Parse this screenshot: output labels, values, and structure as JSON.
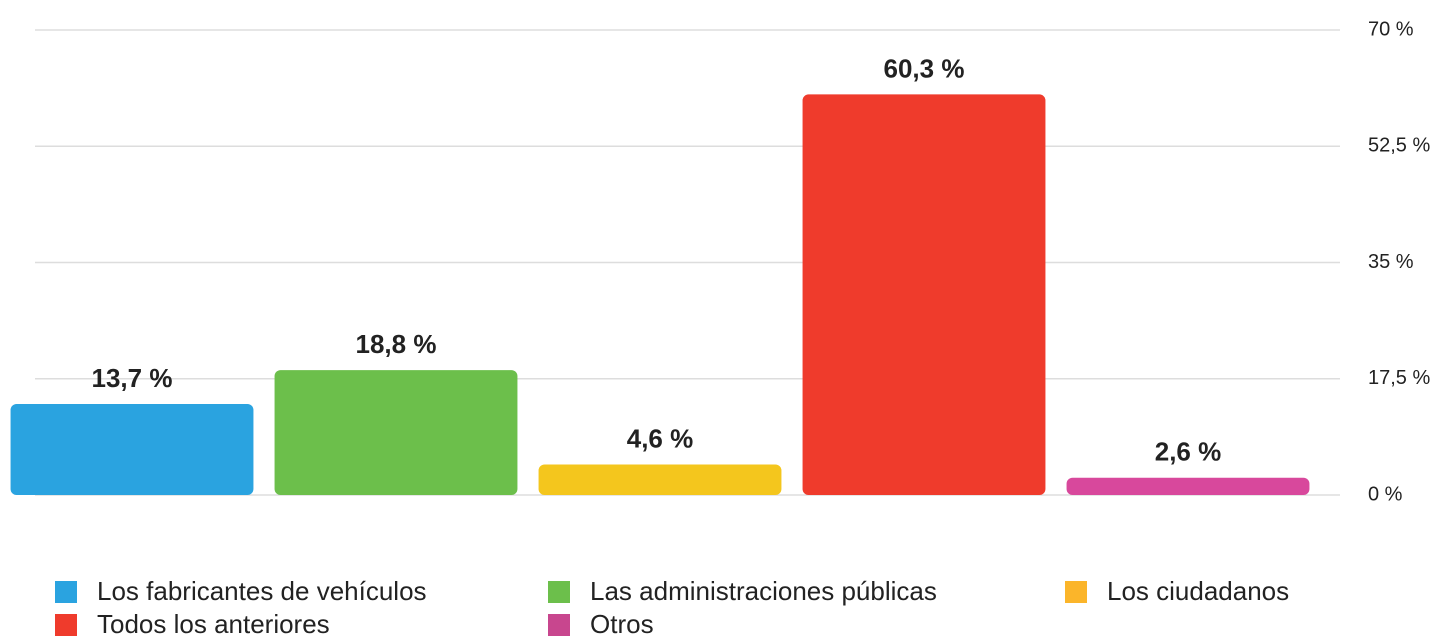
{
  "chart_data": {
    "type": "bar",
    "categories": [
      "Los fabricantes de vehículos",
      "Las administraciones públicas",
      "Los ciudadanos",
      "Todos los anteriores",
      "Otros"
    ],
    "values": [
      13.7,
      18.8,
      4.6,
      60.3,
      2.6
    ],
    "value_labels": [
      "13,7 %",
      "18,8 %",
      "4,6 %",
      "60,3 %",
      "2,6 %"
    ],
    "colors": [
      "#2aa3e0",
      "#6cbf4b",
      "#f4c61d",
      "#ef3b2c",
      "#d8489c"
    ],
    "legend_colors": [
      "#2aa3e0",
      "#6cbf4b",
      "#fbb52a",
      "#ef3b2c",
      "#c8468e"
    ],
    "ylim": [
      0,
      70
    ],
    "yticks": [
      {
        "value": 0,
        "label": "0 %"
      },
      {
        "value": 17.5,
        "label": "17,5 %"
      },
      {
        "value": 35,
        "label": "35 %"
      },
      {
        "value": 52.5,
        "label": "52,5 %"
      },
      {
        "value": 70,
        "label": "70 %"
      }
    ],
    "grid": true,
    "legend": "bottom"
  }
}
